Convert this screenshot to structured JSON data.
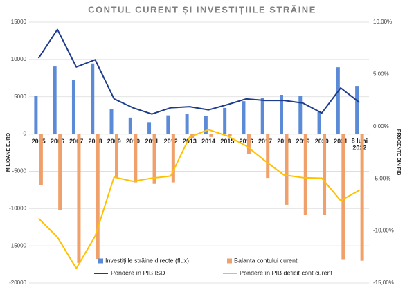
{
  "chart_data": {
    "type": "bar",
    "title": "CONTUL CURENT ȘI INVESTIȚIILE STRĂINE",
    "y_label": "MILIOANE EURO",
    "y2_label": "PROCENTE DIN PIB",
    "categories": [
      "2005",
      "2006",
      "2007",
      "2008",
      "2009",
      "2010",
      "2011",
      "2012",
      "2013",
      "2014",
      "2015",
      "2016",
      "2017",
      "2018",
      "2019",
      "2020",
      "2021",
      "8 luni 2022"
    ],
    "series": [
      {
        "name": "Investițiile străine directe (flux)",
        "type": "bar",
        "color": "#5b8bd6",
        "values": [
          5100,
          9050,
          7200,
          9450,
          3300,
          2200,
          1600,
          2500,
          2650,
          2400,
          3500,
          4400,
          4800,
          5250,
          5150,
          3000,
          8950,
          6450
        ]
      },
      {
        "name": "Balanța contului curent",
        "type": "bar",
        "color": "#f0a06a",
        "values": [
          -6900,
          -10250,
          -17300,
          -16750,
          -5900,
          -6500,
          -6700,
          -6500,
          -600,
          -400,
          -300,
          -2700,
          -5900,
          -9500,
          -10900,
          -10900,
          -16800,
          -17000
        ]
      },
      {
        "name": "Pondere în PIB ISD",
        "type": "line",
        "axis": "y2",
        "color": "#1f3c8c",
        "values": [
          6.55,
          9.3,
          5.7,
          6.4,
          2.65,
          1.8,
          1.2,
          1.8,
          1.9,
          1.6,
          2.1,
          2.65,
          2.5,
          2.5,
          2.25,
          1.3,
          3.7,
          2.3
        ]
      },
      {
        "name": "Pondere în PIB deficit cont curent",
        "type": "line",
        "axis": "y2",
        "color": "#ffc000",
        "values": [
          -8.8,
          -10.6,
          -13.6,
          -10.5,
          -4.85,
          -5.25,
          -4.95,
          -4.75,
          -1.0,
          -0.3,
          -0.9,
          -1.85,
          -3.3,
          -4.65,
          -4.9,
          -4.95,
          -7.1,
          -6.1
        ]
      }
    ],
    "ylim": [
      -20000,
      15000
    ],
    "yticks": [
      -20000,
      -15000,
      -10000,
      -5000,
      0,
      5000,
      10000,
      15000
    ],
    "y2lim": [
      -15,
      10
    ],
    "y2ticks": [
      {
        "value": -15,
        "label": "-15,00%"
      },
      {
        "value": -10,
        "label": "-10,00%"
      },
      {
        "value": -5,
        "label": "-5,00%"
      },
      {
        "value": 0,
        "label": "0,00%"
      },
      {
        "value": 5,
        "label": "5,00%"
      },
      {
        "value": 10,
        "label": "10,00%"
      }
    ],
    "grid": true,
    "legend": "bottom"
  }
}
